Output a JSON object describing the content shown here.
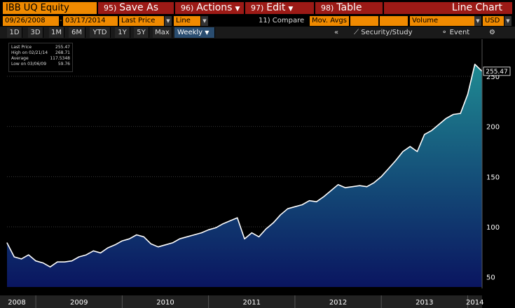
{
  "toolbar": {
    "ticker": "IBB UQ Equity",
    "save_as": {
      "num": "95)",
      "label": "Save As"
    },
    "actions": {
      "num": "96)",
      "label": "Actions"
    },
    "edit": {
      "num": "97)",
      "label": "Edit"
    },
    "table": {
      "num": "98)",
      "label": "Table"
    },
    "title": "Line Chart"
  },
  "fields": {
    "start_date": "09/26/2008",
    "end_date": "03/17/2014",
    "price_field": "Last Price",
    "chart_type": "Line",
    "compare": "11) Compare",
    "mov_avgs": "Mov. Avgs",
    "volume": "Volume",
    "currency": "USD"
  },
  "periods": [
    "1D",
    "3D",
    "1M",
    "6M",
    "YTD",
    "1Y",
    "5Y",
    "Max"
  ],
  "frequency": "Weekly",
  "tools": {
    "collapse": "«",
    "security_study": "Security/Study",
    "event": "Event",
    "settings": "⚙"
  },
  "legend": {
    "rows": [
      {
        "label": "Last Price",
        "value": "255.47"
      },
      {
        "label": "High on 02/21/14",
        "value": "268.71"
      },
      {
        "label": "Average",
        "value": "117.5348"
      },
      {
        "label": "Low on 03/06/09",
        "value": "59.76"
      }
    ]
  },
  "last_price_tag": "255.47",
  "colors": {
    "line": "#ffffff",
    "fill_top": "#1f8a92",
    "fill_bottom": "#0a1560",
    "orange": "#f08a00",
    "red": "#9c1a16"
  },
  "chart_data": {
    "type": "area",
    "x_labels": [
      "2008",
      "2009",
      "2010",
      "2011",
      "2012",
      "2013",
      "2014"
    ],
    "y_ticks": [
      50,
      100,
      150,
      200,
      250
    ],
    "ylim": [
      40,
      280
    ],
    "x": [
      "2008-09",
      "2008-10",
      "2008-11",
      "2008-12",
      "2009-01",
      "2009-02",
      "2009-03",
      "2009-04",
      "2009-05",
      "2009-06",
      "2009-07",
      "2009-08",
      "2009-09",
      "2009-10",
      "2009-11",
      "2009-12",
      "2010-01",
      "2010-02",
      "2010-03",
      "2010-04",
      "2010-05",
      "2010-06",
      "2010-07",
      "2010-08",
      "2010-09",
      "2010-10",
      "2010-11",
      "2010-12",
      "2011-01",
      "2011-02",
      "2011-03",
      "2011-04",
      "2011-05",
      "2011-06",
      "2011-07",
      "2011-08",
      "2011-09",
      "2011-10",
      "2011-11",
      "2011-12",
      "2012-01",
      "2012-02",
      "2012-03",
      "2012-04",
      "2012-05",
      "2012-06",
      "2012-07",
      "2012-08",
      "2012-09",
      "2012-10",
      "2012-11",
      "2012-12",
      "2013-01",
      "2013-02",
      "2013-03",
      "2013-04",
      "2013-05",
      "2013-06",
      "2013-07",
      "2013-08",
      "2013-09",
      "2013-10",
      "2013-11",
      "2013-12",
      "2014-01",
      "2014-02",
      "2014-03"
    ],
    "series": [
      {
        "values": [
          84,
          70,
          68,
          72,
          66,
          64,
          60,
          65,
          65,
          66,
          70,
          72,
          76,
          74,
          79,
          82,
          86,
          88,
          92,
          90,
          83,
          80,
          82,
          84,
          88,
          90,
          92,
          94,
          97,
          99,
          103,
          106,
          109,
          88,
          94,
          90,
          98,
          104,
          112,
          118,
          120,
          122,
          126,
          125,
          130,
          136,
          142,
          139,
          140,
          141,
          140,
          144,
          150,
          158,
          166,
          175,
          180,
          175,
          192,
          196,
          202,
          208,
          212,
          213,
          232,
          262,
          255
        ]
      }
    ]
  }
}
